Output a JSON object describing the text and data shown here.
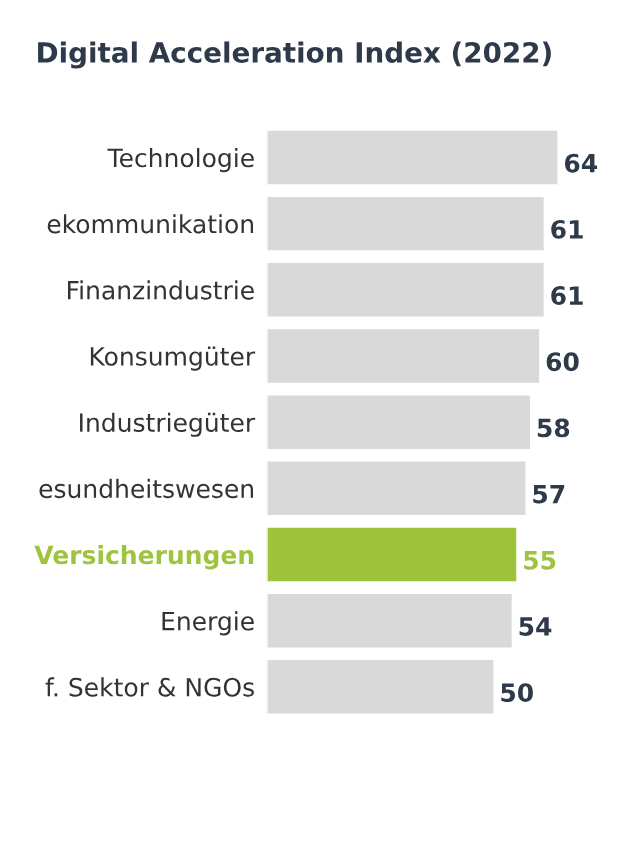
{
  "chart_data": {
    "type": "bar",
    "orientation": "horizontal",
    "title": "Digital Acceleration Index (2022)",
    "categories": [
      "Technologie",
      "ekommunikation",
      "Finanzindustrie",
      "Konsumgüter",
      "Industriegüter",
      "esundheitswesen",
      "Versicherungen",
      "Energie",
      "f. Sektor & NGOs"
    ],
    "values": [
      64,
      61,
      61,
      60,
      58,
      57,
      55,
      54,
      50
    ],
    "colors": [
      "#d9d9d9",
      "#d9d9d9",
      "#d9d9d9",
      "#d9d9d9",
      "#d9d9d9",
      "#d9d9d9",
      "#9dc43c",
      "#d9d9d9",
      "#d9d9d9"
    ],
    "tick_labels": "y",
    "data_labels": true,
    "grid": false,
    "legend": false
  }
}
